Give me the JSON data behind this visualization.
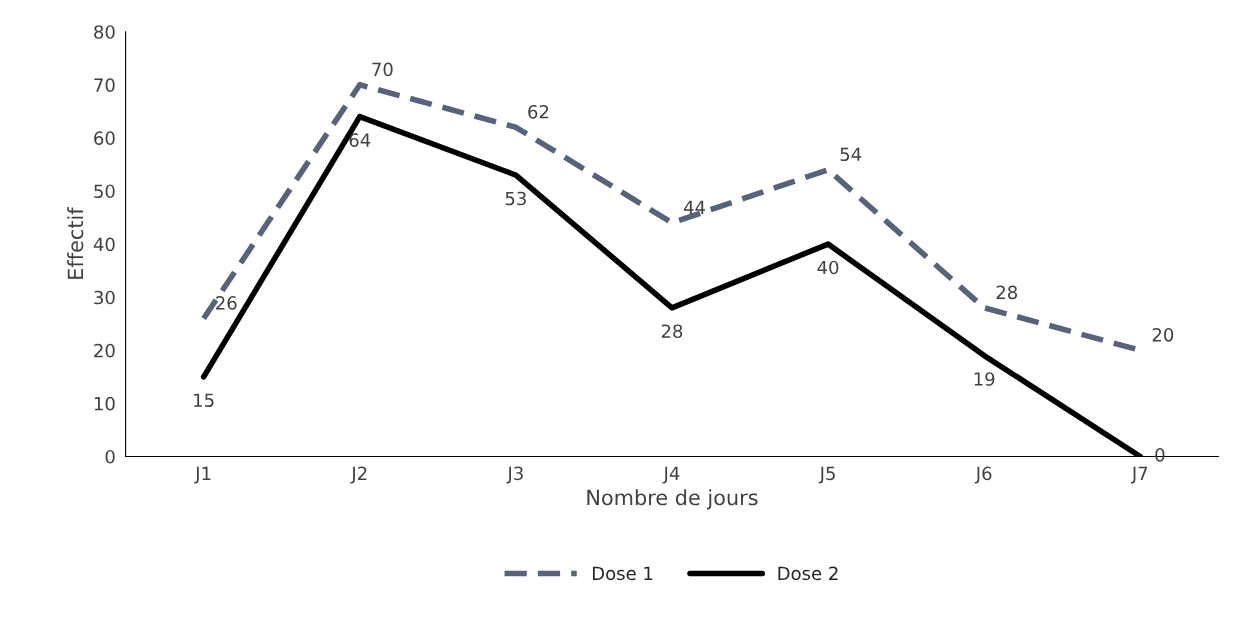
{
  "chart_data": {
    "type": "line",
    "xlabel": "Nombre de jours",
    "ylabel": "Effectif",
    "categories": [
      "J1",
      "J2",
      "J3",
      "J4",
      "J5",
      "J6",
      "J7"
    ],
    "series": [
      {
        "name": "Dose 1",
        "color": "#56637a",
        "line_style": "dashed",
        "values": [
          26,
          70,
          62,
          44,
          54,
          28,
          20
        ]
      },
      {
        "name": "Dose 2",
        "color": "#000000",
        "line_style": "solid",
        "values": [
          15,
          64,
          53,
          28,
          40,
          19,
          0
        ]
      }
    ],
    "ylim": [
      0,
      80
    ],
    "yticks": [
      0,
      10,
      20,
      30,
      40,
      50,
      60,
      70,
      80
    ],
    "grid": false,
    "legend": "bottom",
    "marker": "none",
    "data_labels": true
  }
}
